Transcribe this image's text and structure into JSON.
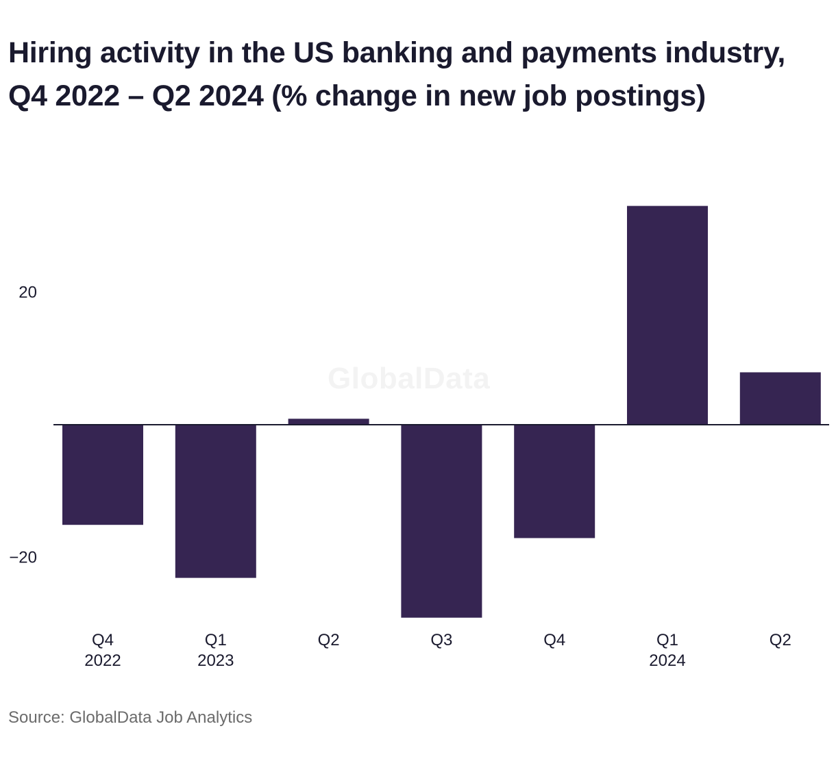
{
  "title": "Hiring activity in the US banking and payments industry, Q4 2022 – Q2 2024 (% change in new job postings)",
  "source": "Source: GlobalData Job Analytics",
  "watermark": "GlobalData",
  "colors": {
    "bar": "#362552",
    "text": "#1a1a2e",
    "source": "#6b6b6b",
    "baseline": "#1a1a2e"
  },
  "chart_data": {
    "type": "bar",
    "title": "Hiring activity in the US banking and payments industry, Q4 2022 – Q2 2024 (% change in new job postings)",
    "xlabel": "",
    "ylabel": "",
    "categories": [
      [
        "Q4",
        "2022"
      ],
      [
        "Q1",
        "2023"
      ],
      [
        "Q2",
        ""
      ],
      [
        "Q3",
        ""
      ],
      [
        "Q4",
        ""
      ],
      [
        "Q1",
        "2024"
      ],
      [
        "Q2",
        ""
      ]
    ],
    "values": [
      -15.1,
      -23.1,
      0.9,
      -29.1,
      -17.1,
      33.0,
      7.9
    ],
    "y_ticks": [
      20,
      -20
    ],
    "y_tick_labels": [
      "20",
      "−20"
    ],
    "ylim": [
      -29.1,
      33.0
    ],
    "grid": false,
    "baseline": 0
  }
}
